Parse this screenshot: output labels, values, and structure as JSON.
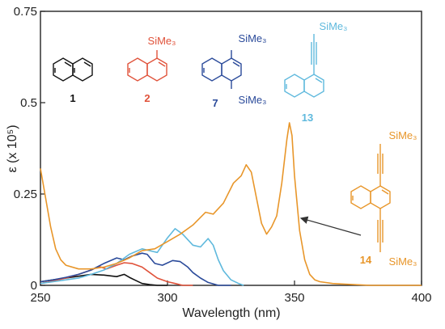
{
  "chart_data": {
    "type": "line",
    "xlabel": "Wavelength (nm)",
    "ylabel": "ε (x 10⁵)",
    "xlim": [
      250,
      400
    ],
    "ylim": [
      0,
      0.75
    ],
    "xticks": [
      "250",
      "300",
      "350",
      "400"
    ],
    "yticks": [
      "0",
      "0.25",
      "0.5",
      "0.75"
    ],
    "grid": false,
    "series": [
      {
        "name": "1",
        "color": "#111111",
        "points": [
          [
            250,
            0.01
          ],
          [
            255,
            0.015
          ],
          [
            260,
            0.02
          ],
          [
            265,
            0.025
          ],
          [
            270,
            0.03
          ],
          [
            275,
            0.028
          ],
          [
            280,
            0.024
          ],
          [
            283,
            0.03
          ],
          [
            285,
            0.022
          ],
          [
            287,
            0.015
          ],
          [
            290,
            0.005
          ],
          [
            293,
            0.002
          ],
          [
            296,
            0.0
          ],
          [
            300,
            0.0
          ]
        ]
      },
      {
        "name": "2",
        "color": "#e0523a",
        "points": [
          [
            250,
            0.005
          ],
          [
            255,
            0.012
          ],
          [
            260,
            0.02
          ],
          [
            265,
            0.03
          ],
          [
            270,
            0.042
          ],
          [
            273,
            0.052
          ],
          [
            276,
            0.045
          ],
          [
            280,
            0.055
          ],
          [
            283,
            0.062
          ],
          [
            286,
            0.06
          ],
          [
            290,
            0.05
          ],
          [
            293,
            0.035
          ],
          [
            296,
            0.02
          ],
          [
            300,
            0.01
          ],
          [
            303,
            0.005
          ],
          [
            306,
            0.0
          ],
          [
            310,
            0.0
          ]
        ]
      },
      {
        "name": "7",
        "color": "#2a4a9a",
        "points": [
          [
            250,
            0.01
          ],
          [
            255,
            0.015
          ],
          [
            260,
            0.022
          ],
          [
            265,
            0.03
          ],
          [
            270,
            0.042
          ],
          [
            275,
            0.06
          ],
          [
            280,
            0.075
          ],
          [
            283,
            0.07
          ],
          [
            286,
            0.08
          ],
          [
            290,
            0.088
          ],
          [
            292,
            0.085
          ],
          [
            295,
            0.06
          ],
          [
            298,
            0.055
          ],
          [
            302,
            0.068
          ],
          [
            305,
            0.065
          ],
          [
            308,
            0.05
          ],
          [
            310,
            0.035
          ],
          [
            313,
            0.02
          ],
          [
            316,
            0.008
          ],
          [
            320,
            0.0
          ],
          [
            325,
            0.0
          ]
        ]
      },
      {
        "name": "13",
        "color": "#5fb9dd",
        "points": [
          [
            250,
            0.005
          ],
          [
            255,
            0.01
          ],
          [
            260,
            0.015
          ],
          [
            265,
            0.02
          ],
          [
            270,
            0.03
          ],
          [
            275,
            0.042
          ],
          [
            280,
            0.06
          ],
          [
            285,
            0.085
          ],
          [
            290,
            0.1
          ],
          [
            293,
            0.095
          ],
          [
            296,
            0.09
          ],
          [
            300,
            0.13
          ],
          [
            303,
            0.155
          ],
          [
            306,
            0.14
          ],
          [
            310,
            0.11
          ],
          [
            313,
            0.105
          ],
          [
            316,
            0.128
          ],
          [
            318,
            0.11
          ],
          [
            320,
            0.07
          ],
          [
            322,
            0.04
          ],
          [
            325,
            0.015
          ],
          [
            328,
            0.005
          ],
          [
            330,
            0.0
          ]
        ]
      },
      {
        "name": "14",
        "color": "#e8962a",
        "points": [
          [
            250,
            0.32
          ],
          [
            252,
            0.24
          ],
          [
            254,
            0.16
          ],
          [
            256,
            0.1
          ],
          [
            258,
            0.07
          ],
          [
            260,
            0.055
          ],
          [
            265,
            0.045
          ],
          [
            270,
            0.045
          ],
          [
            275,
            0.05
          ],
          [
            280,
            0.06
          ],
          [
            285,
            0.075
          ],
          [
            290,
            0.095
          ],
          [
            295,
            0.1
          ],
          [
            300,
            0.12
          ],
          [
            305,
            0.14
          ],
          [
            310,
            0.165
          ],
          [
            315,
            0.2
          ],
          [
            318,
            0.195
          ],
          [
            322,
            0.225
          ],
          [
            326,
            0.28
          ],
          [
            329,
            0.3
          ],
          [
            331,
            0.33
          ],
          [
            333,
            0.31
          ],
          [
            335,
            0.24
          ],
          [
            337,
            0.17
          ],
          [
            339,
            0.14
          ],
          [
            341,
            0.16
          ],
          [
            343,
            0.19
          ],
          [
            345,
            0.28
          ],
          [
            347,
            0.4
          ],
          [
            348,
            0.445
          ],
          [
            349,
            0.41
          ],
          [
            350,
            0.3
          ],
          [
            352,
            0.15
          ],
          [
            354,
            0.07
          ],
          [
            356,
            0.03
          ],
          [
            358,
            0.015
          ],
          [
            360,
            0.01
          ],
          [
            365,
            0.005
          ],
          [
            370,
            0.003
          ],
          [
            380,
            0.0
          ],
          [
            390,
            0.0
          ],
          [
            400,
            0.0
          ]
        ]
      }
    ]
  },
  "molecules": {
    "m1": {
      "number": "1"
    },
    "m2": {
      "number": "2",
      "substituent": "SiMe₃"
    },
    "m7": {
      "number": "7",
      "sub_top": "SiMe₃",
      "sub_bottom": "SiMe₃"
    },
    "m13": {
      "number": "13",
      "substituent": "SiMe₃"
    },
    "m14": {
      "number": "14",
      "sub_top": "SiMe₃",
      "sub_bottom": "SiMe₃"
    }
  }
}
